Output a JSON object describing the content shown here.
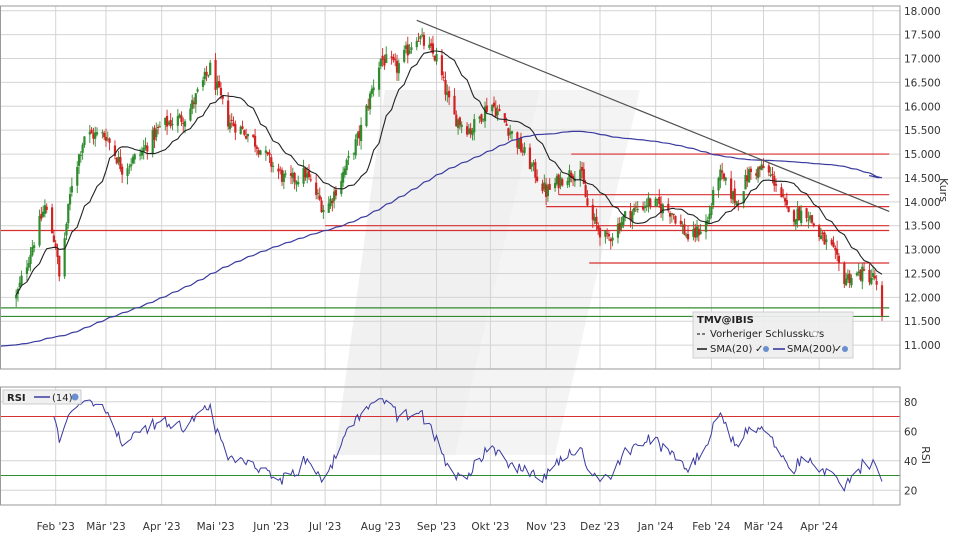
{
  "chart_data": {
    "type": "candlestick",
    "symbol": "TMV@IBIS",
    "y_axis_label": "Kurs",
    "price_ylim": [
      10.5,
      18.1
    ],
    "price_ticks": [
      "18.000",
      "17.500",
      "17.000",
      "16.500",
      "16.000",
      "15.500",
      "15.000",
      "14.500",
      "14.000",
      "13.500",
      "13.000",
      "12.500",
      "12.000",
      "11.500",
      "11.000"
    ],
    "x_ticks": [
      "Feb '23",
      "Mär '23",
      "Apr '23",
      "Mai '23",
      "Jun '23",
      "Jul '23",
      "Aug '23",
      "Sep '23",
      "Okt '23",
      "Nov '23",
      "Dez '23",
      "Jan '24",
      "Feb '24",
      "Mär '24",
      "Apr '24"
    ],
    "price_path": [
      [
        "2023-01-10",
        12.0
      ],
      [
        "2023-01-20",
        13.2
      ],
      [
        "2023-01-26",
        13.9
      ],
      [
        "2023-02-01",
        13.1
      ],
      [
        "2023-02-03",
        12.4
      ],
      [
        "2023-02-10",
        14.4
      ],
      [
        "2023-02-17",
        15.4
      ],
      [
        "2023-03-01",
        15.4
      ],
      [
        "2023-03-10",
        14.7
      ],
      [
        "2023-03-20",
        15.0
      ],
      [
        "2023-04-01",
        15.6
      ],
      [
        "2023-04-15",
        15.8
      ],
      [
        "2023-04-28",
        16.8
      ],
      [
        "2023-05-08",
        15.7
      ],
      [
        "2023-05-20",
        15.4
      ],
      [
        "2023-06-01",
        14.8
      ],
      [
        "2023-06-10",
        14.4
      ],
      [
        "2023-06-20",
        14.6
      ],
      [
        "2023-07-01",
        13.8
      ],
      [
        "2023-07-10",
        14.5
      ],
      [
        "2023-07-20",
        15.4
      ],
      [
        "2023-08-01",
        17.0
      ],
      [
        "2023-08-10",
        16.8
      ],
      [
        "2023-08-21",
        17.5
      ],
      [
        "2023-09-01",
        17.0
      ],
      [
        "2023-09-10",
        15.8
      ],
      [
        "2023-09-20",
        15.5
      ],
      [
        "2023-10-01",
        16.1
      ],
      [
        "2023-10-10",
        15.6
      ],
      [
        "2023-10-20",
        15.0
      ],
      [
        "2023-11-01",
        14.2
      ],
      [
        "2023-11-10",
        14.5
      ],
      [
        "2023-11-20",
        14.7
      ],
      [
        "2023-11-25",
        13.7
      ],
      [
        "2023-12-05",
        13.2
      ],
      [
        "2023-12-15",
        13.7
      ],
      [
        "2023-12-28",
        14.0
      ],
      [
        "2024-01-10",
        13.8
      ],
      [
        "2024-01-20",
        13.2
      ],
      [
        "2024-01-30",
        13.6
      ],
      [
        "2024-02-05",
        14.6
      ],
      [
        "2024-02-15",
        14.0
      ],
      [
        "2024-02-22",
        14.6
      ],
      [
        "2024-03-01",
        14.7
      ],
      [
        "2024-03-08",
        14.4
      ],
      [
        "2024-03-15",
        13.7
      ],
      [
        "2024-03-25",
        13.8
      ],
      [
        "2024-04-01",
        13.3
      ],
      [
        "2024-04-08",
        13.0
      ],
      [
        "2024-04-15",
        12.4
      ],
      [
        "2024-04-25",
        12.5
      ],
      [
        "2024-05-02",
        12.4
      ],
      [
        "2024-05-06",
        11.5
      ]
    ],
    "annotations": {
      "resistance_lines": [
        {
          "y": 15.0,
          "from": "2023-11-15",
          "to": "2024-05-10"
        },
        {
          "y": 14.15,
          "from": "2023-11-08",
          "to": "2024-05-10"
        },
        {
          "y": 13.9,
          "from": "2023-11-01",
          "to": "2024-05-10"
        },
        {
          "y": 13.5,
          "from": "2023-07-01",
          "to": "2024-05-10"
        },
        {
          "y": 13.4,
          "from": "2023-01-01",
          "to": "2024-05-10"
        },
        {
          "y": 12.72,
          "from": "2023-11-25",
          "to": "2024-05-10"
        }
      ],
      "support_lines": [
        {
          "y": 11.78,
          "from": "2023-01-01",
          "to": "2024-05-10"
        },
        {
          "y": 11.6,
          "from": "2023-01-01",
          "to": "2024-05-10"
        }
      ],
      "trendline": [
        [
          "2023-08-21",
          17.8
        ],
        [
          "2024-05-10",
          13.8
        ]
      ]
    },
    "legend": {
      "title": "TMV@IBIS",
      "items": [
        "Vorheriger Schlusskurs",
        "SMA(20)",
        "SMA(200)"
      ]
    },
    "indicator": {
      "name": "RSI",
      "legend_label": "(14)",
      "y_axis_label": "RSI",
      "ylim": [
        10,
        90
      ],
      "ticks": [
        "80",
        "60",
        "40",
        "20"
      ],
      "levels": [
        70,
        30
      ]
    },
    "colors": {
      "up": "#2e8b2e",
      "down": "#d22222",
      "sma20": "#222222",
      "sma200": "#3a3aa0",
      "resistance": "#d83030",
      "support": "#2e8b2e",
      "trend": "#505050",
      "rsi": "#3a3aa0",
      "grid": "#d4d4d4"
    }
  }
}
